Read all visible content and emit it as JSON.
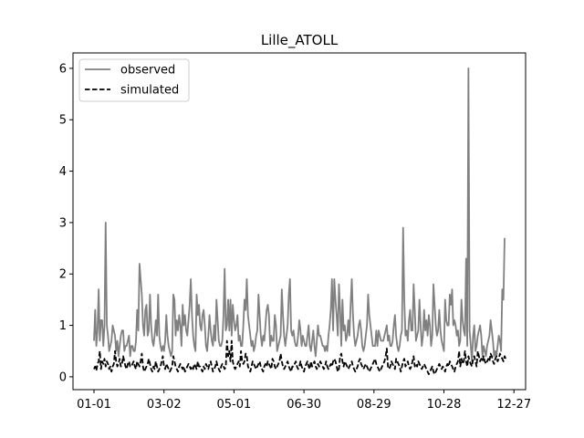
{
  "chart_data": {
    "type": "line",
    "title": "Lille_ATOLL",
    "xlabel": "",
    "ylabel": "",
    "x_start": "01-01",
    "x_tick_labels": [
      "01-01",
      "03-02",
      "05-01",
      "06-30",
      "08-29",
      "10-28",
      "12-27"
    ],
    "y_ticks": [
      0,
      1,
      2,
      3,
      4,
      5,
      6
    ],
    "ylim": [
      -0.25,
      6.3
    ],
    "grid": false,
    "legend_position": "upper left",
    "series": [
      {
        "name": "observed",
        "color": "#808080",
        "dash": "solid",
        "values": [
          0.7,
          1.3,
          0.6,
          0.9,
          1.7,
          0.7,
          1.1,
          1.1,
          0.6,
          1.0,
          3.0,
          1.0,
          0.8,
          0.5,
          0.6,
          0.7,
          1.0,
          0.9,
          0.8,
          0.5,
          0.7,
          0.4,
          0.6,
          0.8,
          0.9,
          0.9,
          0.5,
          0.6,
          0.6,
          0.7,
          0.8,
          0.4,
          0.6,
          0.6,
          0.5,
          0.5,
          0.7,
          1.3,
          0.9,
          2.2,
          1.9,
          1.6,
          1.0,
          0.8,
          1.3,
          1.4,
          0.8,
          0.9,
          1.6,
          1.0,
          0.7,
          0.6,
          0.8,
          1.1,
          0.8,
          1.6,
          0.8,
          0.6,
          0.5,
          0.6,
          0.5,
          0.7,
          1.2,
          0.8,
          0.6,
          0.5,
          0.4,
          0.5,
          1.6,
          1.5,
          0.8,
          1.1,
          0.9,
          1.2,
          1.0,
          0.6,
          1.4,
          1.0,
          1.2,
          0.9,
          0.8,
          1.1,
          1.4,
          1.9,
          1.2,
          0.8,
          0.6,
          0.5,
          1.6,
          1.2,
          1.4,
          1.0,
          0.9,
          1.2,
          1.3,
          1.0,
          0.6,
          0.5,
          0.8,
          1.2,
          0.9,
          0.7,
          0.6,
          1.0,
          0.7,
          1.5,
          1.1,
          0.7,
          0.6,
          0.6,
          0.7,
          1.2,
          2.1,
          0.9,
          1.0,
          1.5,
          0.9,
          1.5,
          0.8,
          1.4,
          1.1,
          0.9,
          1.0,
          1.2,
          0.7,
          0.8,
          0.6,
          0.6,
          1.0,
          1.5,
          1.3,
          1.9,
          1.2,
          1.0,
          0.8,
          0.6,
          0.7,
          0.5,
          0.6,
          0.8,
          0.9,
          1.6,
          1.2,
          0.8,
          0.6,
          0.8,
          0.7,
          1.0,
          1.3,
          1.4,
          1.2,
          0.6,
          0.8,
          0.7,
          0.7,
          1.2,
          1.0,
          0.5,
          0.6,
          0.7,
          0.8,
          1.7,
          1.2,
          0.8,
          0.6,
          0.8,
          1.0,
          1.6,
          1.9,
          0.9,
          0.8,
          0.9,
          0.7,
          0.6,
          0.6,
          0.8,
          1.1,
          0.9,
          0.6,
          0.8,
          0.7,
          0.6,
          0.6,
          0.8,
          1.0,
          0.6,
          0.5,
          0.7,
          0.9,
          0.6,
          0.4,
          0.7,
          1.0,
          0.8,
          0.8,
          0.7,
          0.6,
          0.6,
          0.5,
          0.6,
          0.5,
          0.8,
          1.0,
          1.3,
          1.9,
          0.9,
          1.9,
          1.5,
          1.2,
          0.8,
          1.8,
          1.3,
          0.6,
          1.5,
          0.9,
          1.0,
          0.7,
          0.8,
          1.1,
          0.8,
          1.4,
          1.9,
          1.2,
          0.8,
          0.6,
          0.7,
          0.8,
          1.0,
          1.1,
          0.9,
          0.6,
          0.5,
          0.6,
          0.8,
          1.0,
          1.6,
          1.2,
          1.0,
          0.8,
          0.6,
          0.6,
          0.6,
          0.9,
          0.6,
          0.9,
          0.8,
          0.7,
          0.7,
          0.7,
          0.8,
          0.9,
          1.0,
          0.7,
          0.8,
          0.6,
          0.6,
          0.7,
          1.0,
          1.2,
          0.8,
          0.6,
          0.5,
          0.6,
          0.8,
          0.9,
          2.9,
          1.5,
          0.8,
          0.9,
          0.7,
          1.1,
          1.3,
          0.9,
          0.9,
          1.8,
          1.3,
          0.7,
          0.8,
          0.9,
          1.5,
          1.0,
          0.6,
          0.8,
          1.3,
          0.9,
          1.1,
          0.8,
          1.2,
          1.0,
          0.6,
          0.8,
          1.8,
          1.4,
          1.0,
          0.8,
          0.9,
          1.3,
          0.9,
          0.7,
          0.6,
          0.5,
          1.5,
          1.1,
          1.0,
          1.0,
          1.6,
          1.4,
          1.7,
          1.0,
          1.1,
          1.0,
          0.8,
          0.9,
          0.6,
          0.7,
          1.5,
          1.1,
          0.9,
          0.8,
          2.3,
          0.6,
          6.0,
          0.9,
          0.6,
          0.3,
          0.8,
          1.0,
          0.5,
          0.6,
          0.8,
          0.9,
          1.0,
          0.8,
          0.4,
          0.6,
          0.5,
          0.4,
          0.6,
          0.7,
          0.8,
          1.1,
          0.9,
          0.7,
          0.4,
          0.5,
          0.4,
          0.6,
          0.8,
          0.7,
          0.5,
          1.7,
          1.5,
          2.7
        ]
      },
      {
        "name": "simulated",
        "color": "#000000",
        "dash": "dashed",
        "values": [
          0.15,
          0.2,
          0.12,
          0.25,
          0.3,
          0.5,
          0.15,
          0.3,
          0.25,
          0.35,
          0.2,
          0.3,
          0.25,
          0.15,
          0.2,
          0.1,
          0.2,
          0.25,
          0.5,
          0.3,
          0.2,
          0.25,
          0.35,
          0.2,
          0.25,
          0.4,
          0.3,
          0.2,
          0.15,
          0.25,
          0.3,
          0.2,
          0.2,
          0.25,
          0.3,
          0.2,
          0.15,
          0.3,
          0.25,
          0.2,
          0.3,
          0.45,
          0.2,
          0.1,
          0.15,
          0.2,
          0.25,
          0.35,
          0.25,
          0.15,
          0.1,
          0.2,
          0.15,
          0.3,
          0.2,
          0.1,
          0.15,
          0.2,
          0.3,
          0.4,
          0.2,
          0.15,
          0.25,
          0.2,
          0.15,
          0.1,
          0.15,
          0.2,
          0.4,
          0.3,
          0.2,
          0.15,
          0.1,
          0.2,
          0.25,
          0.2,
          0.15,
          0.2,
          0.1,
          0.15,
          0.2,
          0.25,
          0.2,
          0.15,
          0.2,
          0.15,
          0.25,
          0.2,
          0.15,
          0.3,
          0.2,
          0.2,
          0.15,
          0.1,
          0.2,
          0.15,
          0.25,
          0.2,
          0.15,
          0.25,
          0.3,
          0.2,
          0.1,
          0.15,
          0.2,
          0.3,
          0.2,
          0.15,
          0.1,
          0.2,
          0.25,
          0.2,
          0.15,
          0.2,
          0.7,
          0.4,
          0.5,
          0.3,
          0.7,
          0.3,
          0.2,
          0.15,
          0.2,
          0.25,
          0.3,
          0.2,
          0.5,
          0.3,
          0.25,
          0.3,
          0.45,
          0.4,
          0.2,
          0.15,
          0.1,
          0.2,
          0.3,
          0.25,
          0.2,
          0.15,
          0.2,
          0.25,
          0.3,
          0.2,
          0.15,
          0.1,
          0.2,
          0.25,
          0.2,
          0.3,
          0.25,
          0.2,
          0.15,
          0.35,
          0.3,
          0.2,
          0.15,
          0.2,
          0.25,
          0.3,
          0.45,
          0.3,
          0.2,
          0.15,
          0.2,
          0.25,
          0.3,
          0.2,
          0.15,
          0.1,
          0.2,
          0.2,
          0.25,
          0.3,
          0.2,
          0.15,
          0.2,
          0.3,
          0.2,
          0.15,
          0.1,
          0.2,
          0.25,
          0.3,
          0.2,
          0.15,
          0.3,
          0.2,
          0.25,
          0.3,
          0.2,
          0.15,
          0.25,
          0.2,
          0.3,
          0.25,
          0.2,
          0.15,
          0.2,
          0.3,
          0.2,
          0.15,
          0.2,
          0.25,
          0.2,
          0.3,
          0.35,
          0.3,
          0.2,
          0.1,
          0.15,
          0.4,
          0.45,
          0.3,
          0.2,
          0.3,
          0.25,
          0.2,
          0.15,
          0.2,
          0.25,
          0.3,
          0.2,
          0.15,
          0.1,
          0.15,
          0.2,
          0.3,
          0.35,
          0.25,
          0.2,
          0.15,
          0.2,
          0.25,
          0.2,
          0.15,
          0.1,
          0.15,
          0.2,
          0.25,
          0.3,
          0.35,
          0.25,
          0.2,
          0.15,
          0.1,
          0.15,
          0.2,
          0.25,
          0.3,
          0.4,
          0.55,
          0.2,
          0.15,
          0.2,
          0.3,
          0.25,
          0.2,
          0.15,
          0.35,
          0.3,
          0.25,
          0.2,
          0.1,
          0.2,
          0.3,
          0.35,
          0.2,
          0.25,
          0.3,
          0.2,
          0.15,
          0.2,
          0.3,
          0.4,
          0.2,
          0.25,
          0.2,
          0.3,
          0.25,
          0.2,
          0.15,
          0.2,
          0.25,
          0.2,
          0.15,
          0.1,
          0.05,
          0.1,
          0.15,
          0.2,
          0.1,
          0.05,
          0.1,
          0.15,
          0.2,
          0.25,
          0.2,
          0.15,
          0.2,
          0.15,
          0.1,
          0.2,
          0.25,
          0.2,
          0.3,
          0.25,
          0.2,
          0.15,
          0.1,
          0.2,
          0.25,
          0.3,
          0.5,
          0.2,
          0.35,
          0.25,
          0.3,
          0.5,
          0.3,
          0.2,
          0.4,
          0.3,
          0.25,
          0.2,
          0.35,
          0.4,
          0.3,
          0.2,
          0.5,
          0.4,
          0.3,
          0.35,
          0.3,
          0.4,
          0.3,
          0.25,
          0.3,
          0.35,
          0.3,
          0.45,
          0.4,
          0.3,
          0.25,
          0.35,
          0.4,
          0.3,
          0.35,
          0.45,
          0.4,
          0.35,
          0.3,
          0.4,
          0.35
        ]
      }
    ]
  }
}
